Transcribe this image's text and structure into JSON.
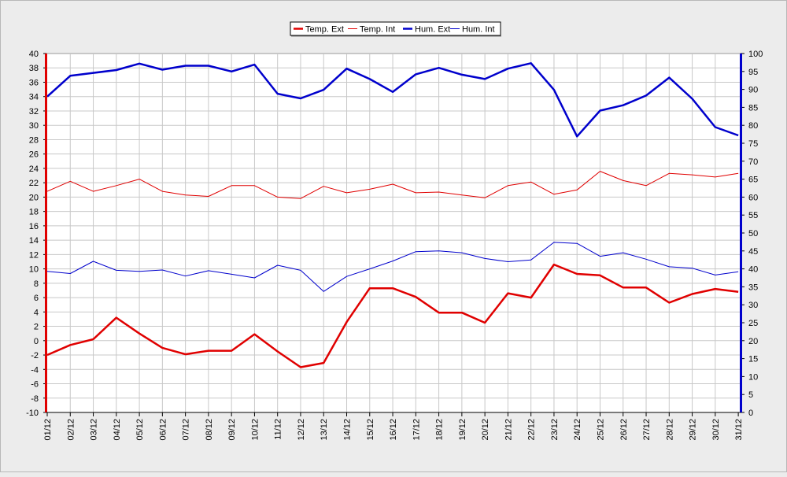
{
  "chart_data": {
    "type": "line",
    "categories": [
      "01/12",
      "02/12",
      "03/12",
      "04/12",
      "05/12",
      "06/12",
      "07/12",
      "08/12",
      "09/12",
      "10/12",
      "11/12",
      "12/12",
      "13/12",
      "14/12",
      "15/12",
      "16/12",
      "17/12",
      "18/12",
      "19/12",
      "20/12",
      "21/12",
      "22/12",
      "23/12",
      "24/12",
      "25/12",
      "26/12",
      "27/12",
      "28/12",
      "29/12",
      "30/12",
      "31/12"
    ],
    "left_axis": {
      "min": -10,
      "max": 40,
      "step": 2,
      "color": "#e00000"
    },
    "right_axis": {
      "min": 0,
      "max": 100,
      "step": 5,
      "color": "#0000cc"
    },
    "grid": true,
    "legend_position": "top-center",
    "series": [
      {
        "name": "Temp. Ext",
        "axis": "left",
        "color": "#e00000",
        "width": 2.5,
        "values": [
          -2.0,
          -0.6,
          0.2,
          3.2,
          1.0,
          -1.0,
          -1.9,
          -1.4,
          -1.4,
          0.9,
          -1.5,
          -3.7,
          -3.1,
          2.6,
          7.3,
          7.3,
          6.1,
          3.9,
          3.9,
          2.5,
          6.6,
          6.0,
          10.6,
          9.3,
          9.1,
          7.4,
          7.4,
          5.3,
          6.5,
          7.2,
          6.8
        ]
      },
      {
        "name": "Temp. Int",
        "axis": "left",
        "color": "#e00000",
        "width": 1,
        "values": [
          20.8,
          22.2,
          20.8,
          21.6,
          22.5,
          20.8,
          20.3,
          20.1,
          21.6,
          21.6,
          20.0,
          19.8,
          21.5,
          20.6,
          21.1,
          21.8,
          20.6,
          20.7,
          20.3,
          19.9,
          21.6,
          22.1,
          20.4,
          21.0,
          23.6,
          22.3,
          21.6,
          23.3,
          23.1,
          22.8,
          23.3
        ]
      },
      {
        "name": "Hum. Ext",
        "axis": "right",
        "color": "#0000cc",
        "width": 2.5,
        "values": [
          88,
          93.8,
          94.6,
          95.4,
          97.2,
          95.5,
          96.6,
          96.6,
          95.0,
          96.9,
          88.8,
          87.5,
          89.9,
          95.8,
          92.9,
          89.3,
          94.2,
          96.0,
          94.1,
          92.9,
          95.8,
          97.3,
          89.9,
          76.9,
          84.1,
          85.6,
          88.3,
          93.3,
          87.4,
          79.5,
          77.2
        ]
      },
      {
        "name": "Hum. Int",
        "axis": "right",
        "color": "#0000cc",
        "width": 1,
        "values": [
          39.3,
          38.7,
          42.1,
          39.6,
          39.3,
          39.7,
          38.0,
          39.5,
          38.5,
          37.5,
          41.0,
          39.6,
          33.7,
          37.9,
          40.0,
          42.2,
          44.8,
          45.0,
          44.5,
          42.9,
          42.0,
          42.5,
          47.4,
          47.1,
          43.5,
          44.5,
          42.7,
          40.6,
          40.2,
          38.3,
          39.2
        ]
      }
    ]
  }
}
